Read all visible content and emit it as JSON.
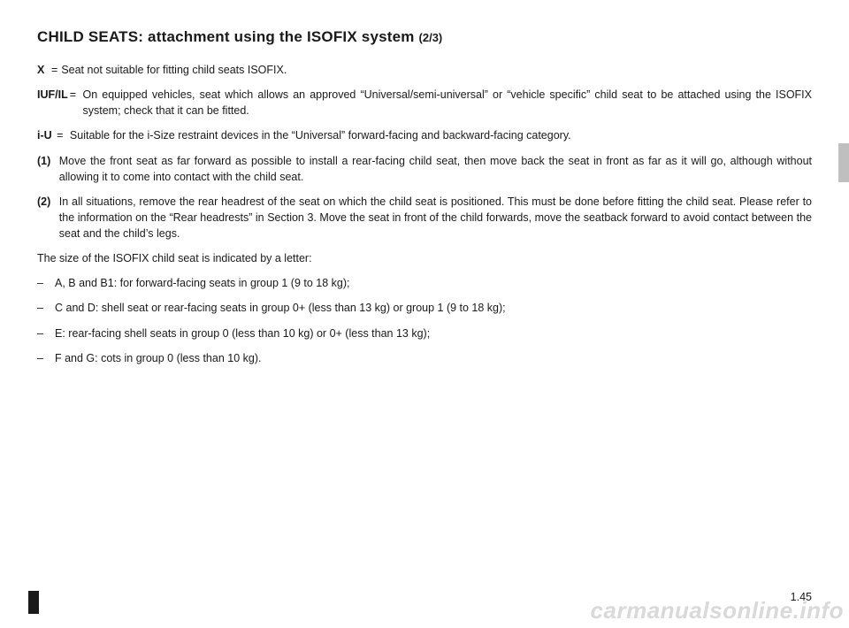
{
  "title": {
    "main": "CHILD SEATS: attachment using the ISOFIX system ",
    "sub": "(2/3)"
  },
  "definitions": [
    {
      "key": "X",
      "val": "Seat not suitable for fitting child seats ISOFIX."
    },
    {
      "key": "IUF/IL",
      "val": "On equipped vehicles, seat which allows an approved “Universal/semi-universal” or “vehicle specific” child seat to be attached using the ISOFIX system; check that it can be fitted."
    },
    {
      "key": "i-U",
      "val": "Suitable for the i-Size restraint devices in the “Universal” forward-facing and backward-facing category."
    }
  ],
  "notes": [
    {
      "key": "(1)",
      "val": "Move the front seat as far forward as possible to install a rear-facing child seat, then move back the seat in front as far as it will go, although without allowing it to come into contact with the child seat."
    },
    {
      "key": "(2)",
      "val": "In all situations, remove the rear headrest of the seat on which the child seat is positioned. This must be done before fitting the child seat. Please refer to the information on the “Rear headrests” in Section 3. Move the seat in front of the child forwards, move the seatback forward to avoid contact between the seat and the child’s legs."
    }
  ],
  "sizeIntro": "The size of the ISOFIX child seat is indicated by a letter:",
  "bullets": [
    "A, B and B1: for forward-facing seats in group 1 (9 to 18 kg);",
    "C and D: shell seat or rear-facing seats in group 0+ (less than 13 kg) or group 1 (9 to 18 kg);",
    "E: rear-facing shell seats in group 0 (less than 10 kg) or 0+ (less than 13 kg);",
    "F and G: cots in group 0 (less than 10 kg)."
  ],
  "pageNumber": "1.45",
  "watermark": "carmanualsonline.info",
  "colors": {
    "text": "#1a1a1a",
    "tabGrey": "#bfbfbf",
    "tabBlack": "#1a1a1a",
    "watermark": "#d9d9d9",
    "background": "#ffffff"
  },
  "typography": {
    "titleMainSize": 17,
    "titleSubSize": 13,
    "bodySize": 12.5,
    "watermarkSize": 26
  }
}
